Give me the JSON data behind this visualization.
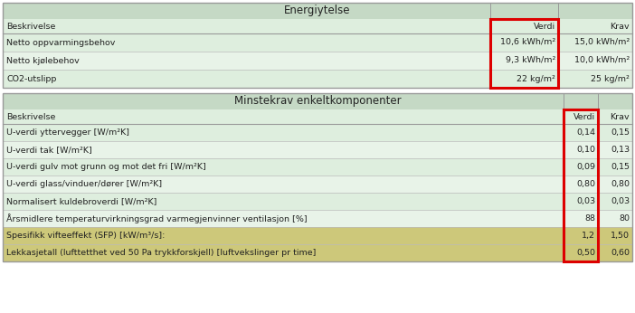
{
  "title1": "Energiytelse",
  "title2": "Minstekrav enkeltkomponenter",
  "header_bg": "#c5d9c5",
  "row_bg_light": "#deeede",
  "row_bg_alt": "#e8f3e8",
  "row_bg_white": "#f2f8f2",
  "highlight_yellow": "#cdc87a",
  "red_box_color": "#dd0000",
  "table1_headers": [
    "Beskrivelse",
    "Verdi",
    "Krav"
  ],
  "table1_rows": [
    [
      "Netto oppvarmingsbehov",
      "10,6 kWh/m²",
      "15,0 kWh/m²"
    ],
    [
      "Netto kjølebehov",
      "9,3 kWh/m²",
      "10,0 kWh/m²"
    ],
    [
      "CO2-utslipp",
      "22 kg/m²",
      "25 kg/m²"
    ]
  ],
  "table2_headers": [
    "Beskrivelse",
    "Verdi",
    "Krav"
  ],
  "table2_rows": [
    [
      "U-verdi yttervegger [W/m²K]",
      "0,14",
      "0,15"
    ],
    [
      "U-verdi tak [W/m²K]",
      "0,10",
      "0,13"
    ],
    [
      "U-verdi gulv mot grunn og mot det fri [W/m²K]",
      "0,09",
      "0,15"
    ],
    [
      "U-verdi glass/vinduer/dører [W/m²K]",
      "0,80",
      "0,80"
    ],
    [
      "Normalisert kuldebroverdi [W/m²K]",
      "0,03",
      "0,03"
    ],
    [
      "Årsmidlere temperaturvirkningsgrad varmegjenvinner ventilasjon [%]",
      "88",
      "80"
    ],
    [
      "Spesifikk vifteeffekt (SFP) [kW/m³/s]:",
      "1,2",
      "1,50"
    ],
    [
      "Lekkasjetall (lufttetthet ved 50 Pa trykkforskjell) [luftvekslinger pr time]",
      "0,50",
      "0,60"
    ]
  ],
  "highlight_rows_table2": [
    6,
    7
  ],
  "font_size": 6.8,
  "title_font_size": 8.5,
  "border_color": "#999999",
  "line_color": "#bbbbbb"
}
